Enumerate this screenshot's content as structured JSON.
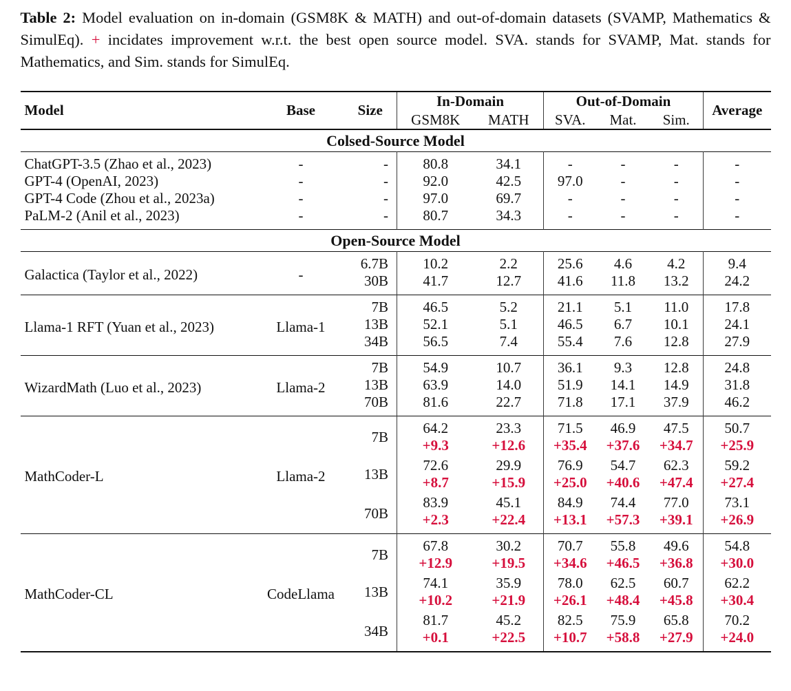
{
  "colors": {
    "text": "#111111",
    "improvement_red": "#d60f3c",
    "rule": "#111111",
    "background": "#ffffff"
  },
  "caption": {
    "label": "Table 2:",
    "text_before_plus": "Model evaluation on in-domain (GSM8K & MATH) and out-of-domain datasets (SVAMP, Mathematics & SimulEq).",
    "plus_sign": "+",
    "text_after_plus": "incidates improvement w.r.t. the best open source model. SVA. stands for SVAMP, Mat. stands for Mathematics, and Sim. stands for SimulEq."
  },
  "table": {
    "header": {
      "model": "Model",
      "base": "Base",
      "size": "Size",
      "in_domain": "In-Domain",
      "out_of_domain": "Out-of-Domain",
      "average": "Average",
      "sub": [
        "GSM8K",
        "MATH",
        "SVA.",
        "Mat.",
        "Sim."
      ]
    },
    "blocks": [
      {
        "section_title_before": "Colsed-Source Model",
        "kind": "list",
        "rows": [
          {
            "model": "ChatGPT-3.5 (Zhao et al., 2023)",
            "base": "-",
            "size": "-",
            "values": [
              "80.8",
              "34.1",
              "-",
              "-",
              "-",
              "-"
            ]
          },
          {
            "model": "GPT-4 (OpenAI, 2023)",
            "base": "-",
            "size": "-",
            "values": [
              "92.0",
              "42.5",
              "97.0",
              "-",
              "-",
              "-"
            ]
          },
          {
            "model": "GPT-4 Code (Zhou et al., 2023a)",
            "base": "-",
            "size": "-",
            "values": [
              "97.0",
              "69.7",
              "-",
              "-",
              "-",
              "-"
            ]
          },
          {
            "model": "PaLM-2 (Anil et al., 2023)",
            "base": "-",
            "size": "-",
            "values": [
              "80.7",
              "34.3",
              "-",
              "-",
              "-",
              "-"
            ]
          }
        ]
      },
      {
        "section_title_before": "Open-Source Model",
        "kind": "group",
        "model": "Galactica (Taylor et al., 2022)",
        "base": "-",
        "rows": [
          {
            "size": "6.7B",
            "values": [
              "10.2",
              "2.2",
              "25.6",
              "4.6",
              "4.2",
              "9.4"
            ],
            "improvements": null
          },
          {
            "size": "30B",
            "values": [
              "41.7",
              "12.7",
              "41.6",
              "11.8",
              "13.2",
              "24.2"
            ],
            "improvements": null
          }
        ]
      },
      {
        "kind": "group",
        "model": "Llama-1 RFT (Yuan et al., 2023)",
        "base": "Llama-1",
        "rows": [
          {
            "size": "7B",
            "values": [
              "46.5",
              "5.2",
              "21.1",
              "5.1",
              "11.0",
              "17.8"
            ],
            "improvements": null
          },
          {
            "size": "13B",
            "values": [
              "52.1",
              "5.1",
              "46.5",
              "6.7",
              "10.1",
              "24.1"
            ],
            "improvements": null
          },
          {
            "size": "34B",
            "values": [
              "56.5",
              "7.4",
              "55.4",
              "7.6",
              "12.8",
              "27.9"
            ],
            "improvements": null
          }
        ]
      },
      {
        "kind": "group",
        "model": "WizardMath (Luo et al., 2023)",
        "base": "Llama-2",
        "rows": [
          {
            "size": "7B",
            "values": [
              "54.9",
              "10.7",
              "36.1",
              "9.3",
              "12.8",
              "24.8"
            ],
            "improvements": null
          },
          {
            "size": "13B",
            "values": [
              "63.9",
              "14.0",
              "51.9",
              "14.1",
              "14.9",
              "31.8"
            ],
            "improvements": null
          },
          {
            "size": "70B",
            "values": [
              "81.6",
              "22.7",
              "71.8",
              "17.1",
              "37.9",
              "46.2"
            ],
            "improvements": null
          }
        ]
      },
      {
        "kind": "group",
        "model": "MathCoder-L",
        "base": "Llama-2",
        "rows": [
          {
            "size": "7B",
            "values": [
              "64.2",
              "23.3",
              "71.5",
              "46.9",
              "47.5",
              "50.7"
            ],
            "improvements": [
              "+9.3",
              "+12.6",
              "+35.4",
              "+37.6",
              "+34.7",
              "+25.9"
            ]
          },
          {
            "size": "13B",
            "values": [
              "72.6",
              "29.9",
              "76.9",
              "54.7",
              "62.3",
              "59.2"
            ],
            "improvements": [
              "+8.7",
              "+15.9",
              "+25.0",
              "+40.6",
              "+47.4",
              "+27.4"
            ]
          },
          {
            "size": "70B",
            "values": [
              "83.9",
              "45.1",
              "84.9",
              "74.4",
              "77.0",
              "73.1"
            ],
            "improvements": [
              "+2.3",
              "+22.4",
              "+13.1",
              "+57.3",
              "+39.1",
              "+26.9"
            ]
          }
        ]
      },
      {
        "kind": "group",
        "model": "MathCoder-CL",
        "base": "CodeLlama",
        "rows": [
          {
            "size": "7B",
            "values": [
              "67.8",
              "30.2",
              "70.7",
              "55.8",
              "49.6",
              "54.8"
            ],
            "improvements": [
              "+12.9",
              "+19.5",
              "+34.6",
              "+46.5",
              "+36.8",
              "+30.0"
            ]
          },
          {
            "size": "13B",
            "values": [
              "74.1",
              "35.9",
              "78.0",
              "62.5",
              "60.7",
              "62.2"
            ],
            "improvements": [
              "+10.2",
              "+21.9",
              "+26.1",
              "+48.4",
              "+45.8",
              "+30.4"
            ]
          },
          {
            "size": "34B",
            "values": [
              "81.7",
              "45.2",
              "82.5",
              "75.9",
              "65.8",
              "70.2"
            ],
            "improvements": [
              "+0.1",
              "+22.5",
              "+10.7",
              "+58.8",
              "+27.9",
              "+24.0"
            ]
          }
        ]
      }
    ]
  }
}
